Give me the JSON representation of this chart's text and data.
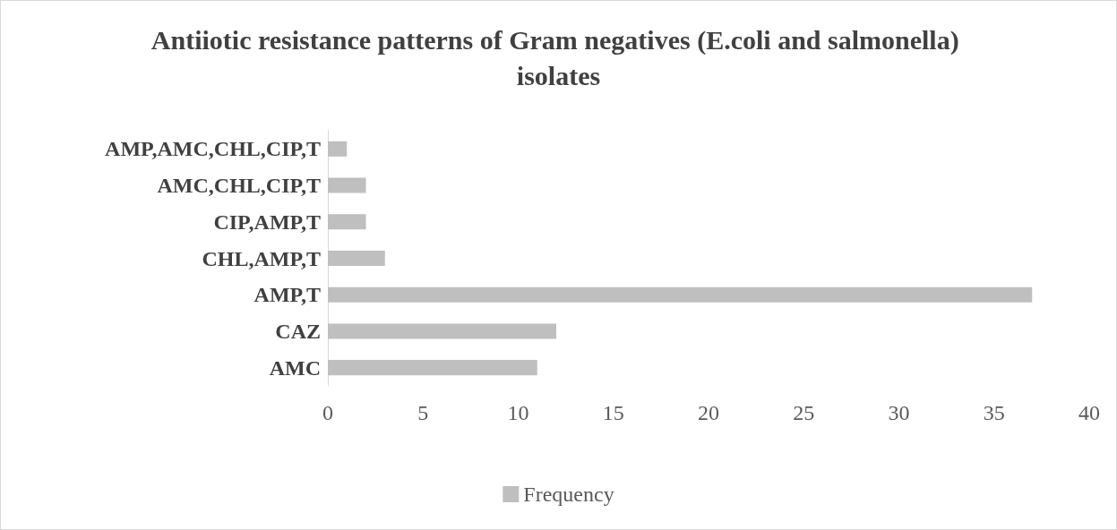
{
  "chart_data": {
    "type": "bar",
    "orientation": "horizontal",
    "title": "Antiiotic resistance patterns of Gram negatives (E.coli and salmonella) isolates",
    "categories": [
      "AMP,AMC,CHL,CIP,T",
      "AMC,CHL,CIP,T",
      "CIP,AMP,T",
      "CHL,AMP,T",
      "AMP,T",
      "CAZ",
      "AMC"
    ],
    "series": [
      {
        "name": "Frequency",
        "color": "#bfbfbf",
        "values": [
          1,
          2,
          2,
          3,
          37,
          12,
          11
        ]
      }
    ],
    "xlim": [
      0,
      40
    ],
    "xticks": [
      0,
      5,
      10,
      15,
      20,
      25,
      30,
      35,
      40
    ],
    "grid": false,
    "legend": "bottom"
  }
}
